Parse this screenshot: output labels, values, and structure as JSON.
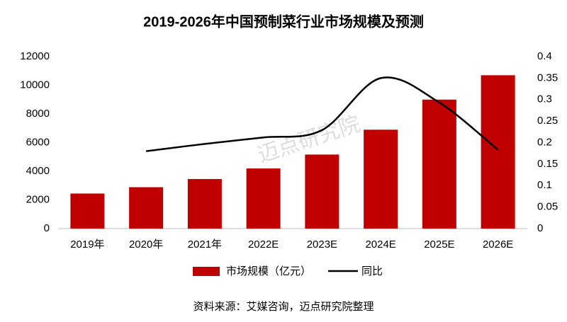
{
  "chart_data": {
    "type": "bar_line",
    "title": "2019-2026年中国预制菜行业市场规模及预测",
    "categories": [
      "2019年",
      "2020年",
      "2021年",
      "2022E",
      "2023E",
      "2024E",
      "2025E",
      "2026E"
    ],
    "series": [
      {
        "name": "市场规模（亿元）",
        "type": "bar",
        "color": "#c00000",
        "values": [
          2445,
          2888,
          3459,
          4196,
          5165,
          6900,
          9000,
          10700
        ]
      },
      {
        "name": "同比",
        "type": "line",
        "axis": "y2",
        "color": "#000000",
        "values": [
          null,
          0.18,
          0.197,
          0.212,
          0.229,
          0.35,
          0.293,
          0.183
        ]
      }
    ],
    "ylim": [
      0,
      12000
    ],
    "yticks": [
      0,
      2000,
      4000,
      6000,
      8000,
      10000,
      12000
    ],
    "y2lim": [
      0,
      0.4
    ],
    "y2ticks": [
      0,
      0.05,
      0.1,
      0.15,
      0.2,
      0.25,
      0.3,
      0.35,
      0.4
    ],
    "legend": "bottom",
    "source": "资料来源：艾媒咨询，迈点研究院整理",
    "watermark": "迈点研究院"
  }
}
